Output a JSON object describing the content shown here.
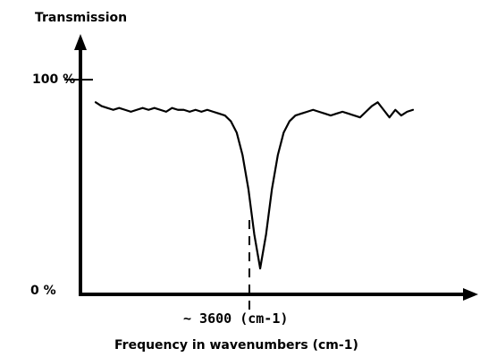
{
  "chart_data": {
    "type": "line",
    "title": "",
    "ylabel": "Transmission",
    "xlabel": "Frequency in wavenumbers (cm-1)",
    "annotation": "~ 3600 (cm-1)",
    "ytick_top": "100 %",
    "ytick_bottom": "0 %",
    "ylim": [
      0,
      100
    ],
    "x_center_wavenumber": 3600,
    "series": [
      {
        "values": [
          88,
          86,
          85,
          84,
          85,
          84,
          83,
          84,
          85,
          84,
          85,
          84,
          83,
          85,
          84,
          84,
          83,
          84,
          83,
          84,
          83,
          82,
          81,
          78,
          72,
          60,
          42,
          18,
          0,
          18,
          42,
          60,
          72,
          78,
          81,
          82,
          83,
          84,
          83,
          82,
          81,
          82,
          83,
          82,
          81,
          80,
          83,
          86,
          88,
          84,
          80,
          84,
          81,
          83,
          84
        ]
      }
    ],
    "grid": false
  }
}
